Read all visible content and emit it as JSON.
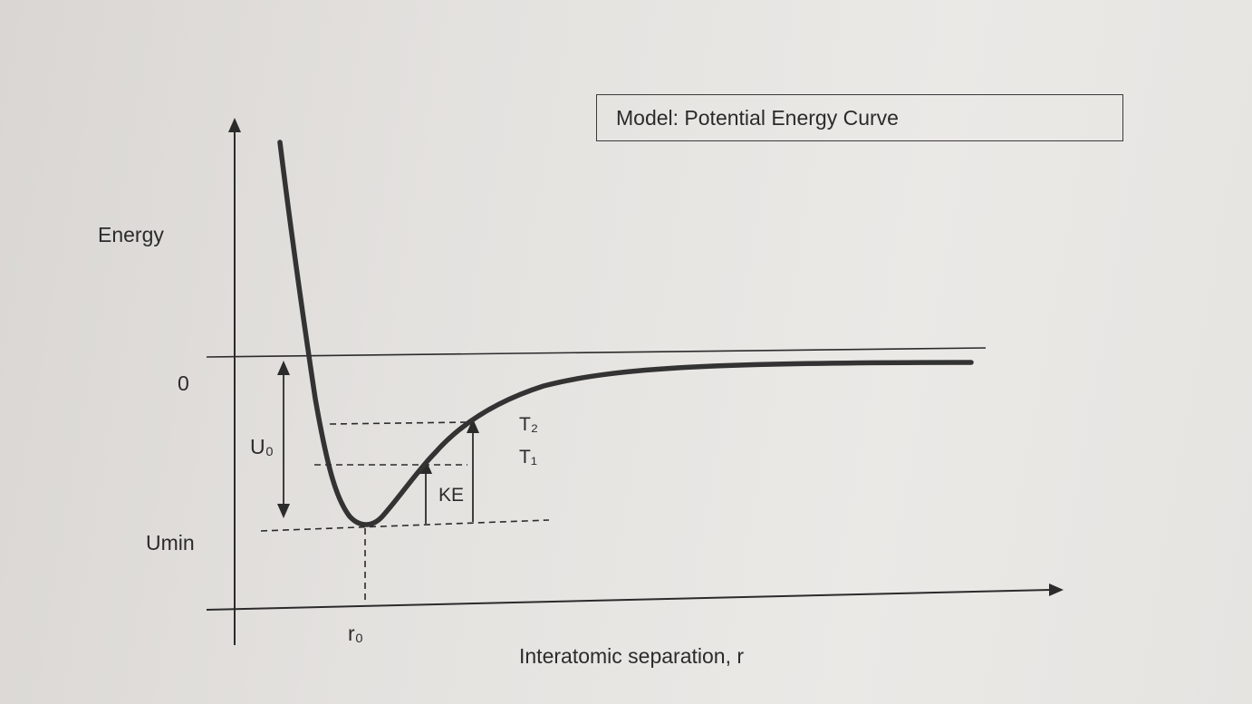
{
  "title": "Model:  Potential Energy Curve",
  "axes": {
    "y_label": "Energy",
    "x_label": "Interatomic separation, r",
    "zero_label": "0",
    "umin_label": "Umin",
    "r0_label": "r₀"
  },
  "annotations": {
    "u0_label": "U₀",
    "ke_label": "KE",
    "t2_label": "T₂",
    "t1_label": "T₁"
  },
  "colors": {
    "ink": "#2b2b2b",
    "curve": "#333333"
  }
}
